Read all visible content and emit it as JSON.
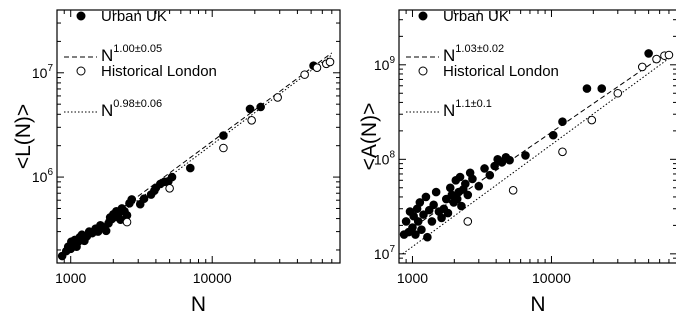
{
  "chart_data": [
    {
      "type": "scatter",
      "xlabel": "N",
      "ylabel": "<L(N)>",
      "xscale": "log",
      "yscale": "log",
      "xlim": [
        800,
        80000
      ],
      "ylim": [
        150000,
        40000000
      ],
      "x_ticks": [
        {
          "value": 1000,
          "label": "1000"
        },
        {
          "value": 10000,
          "label": "10000"
        }
      ],
      "y_ticks": [
        {
          "value": 1000000,
          "base": "10",
          "exp": "6"
        },
        {
          "value": 10000000,
          "base": "10",
          "exp": "7"
        }
      ],
      "legend_position": "top-left",
      "legend": [
        {
          "marker": "filled-circle",
          "label": "Urban UK"
        },
        {
          "line": "dashed",
          "base": "N",
          "exp": "1.00±0.05"
        },
        {
          "marker": "open-circle",
          "label": "Historical London"
        },
        {
          "line": "dotted",
          "base": "N",
          "exp": "0.98±0.06"
        }
      ],
      "fits": [
        {
          "style": "dashed",
          "x": [
            850,
            70000
          ],
          "y": [
            185000,
            15500000
          ]
        },
        {
          "style": "dotted",
          "x": [
            850,
            70000
          ],
          "y": [
            168000,
            14800000
          ]
        }
      ],
      "series": [
        {
          "name": "Urban UK",
          "marker": "filled",
          "points": [
            [
              870,
              175000
            ],
            [
              930,
              195000
            ],
            [
              960,
              215000
            ],
            [
              1000,
              205000
            ],
            [
              1010,
              240000
            ],
            [
              1040,
              225000
            ],
            [
              1070,
              250000
            ],
            [
              1100,
              215000
            ],
            [
              1130,
              240000
            ],
            [
              1160,
              265000
            ],
            [
              1200,
              280000
            ],
            [
              1250,
              245000
            ],
            [
              1300,
              270000
            ],
            [
              1350,
              300000
            ],
            [
              1420,
              290000
            ],
            [
              1500,
              320000
            ],
            [
              1560,
              300000
            ],
            [
              1620,
              345000
            ],
            [
              1700,
              330000
            ],
            [
              1780,
              305000
            ],
            [
              1850,
              360000
            ],
            [
              1900,
              410000
            ],
            [
              1950,
              395000
            ],
            [
              2000,
              440000
            ],
            [
              2050,
              415000
            ],
            [
              2100,
              470000
            ],
            [
              2150,
              430000
            ],
            [
              2200,
              455000
            ],
            [
              2250,
              390000
            ],
            [
              2300,
              500000
            ],
            [
              2400,
              470000
            ],
            [
              2500,
              430000
            ],
            [
              2600,
              560000
            ],
            [
              2700,
              610000
            ],
            [
              3100,
              550000
            ],
            [
              3300,
              620000
            ],
            [
              3700,
              680000
            ],
            [
              3900,
              740000
            ],
            [
              4000,
              790000
            ],
            [
              4300,
              860000
            ],
            [
              4600,
              900000
            ],
            [
              4900,
              910000
            ],
            [
              5200,
              1000000
            ],
            [
              7000,
              1220000
            ],
            [
              12000,
              2500000
            ],
            [
              18500,
              4500000
            ],
            [
              22000,
              4700000
            ],
            [
              52000,
              11700000
            ]
          ]
        },
        {
          "name": "Historical London",
          "marker": "open",
          "points": [
            [
              2500,
              370000
            ],
            [
              5000,
              780000
            ],
            [
              12000,
              1900000
            ],
            [
              19000,
              3500000
            ],
            [
              29000,
              5800000
            ],
            [
              45000,
              9600000
            ],
            [
              55000,
              11200000
            ],
            [
              64000,
              12200000
            ],
            [
              68000,
              12700000
            ]
          ]
        }
      ]
    },
    {
      "type": "scatter",
      "xlabel": "N",
      "ylabel": "<A(N)>",
      "xscale": "log",
      "yscale": "log",
      "xlim": [
        800,
        80000
      ],
      "ylim": [
        8000000,
        3800000000
      ],
      "x_ticks": [
        {
          "value": 1000,
          "label": "1000"
        },
        {
          "value": 10000,
          "label": "10000"
        }
      ],
      "y_ticks": [
        {
          "value": 10000000,
          "base": "10",
          "exp": "7"
        },
        {
          "value": 100000000,
          "base": "10",
          "exp": "8"
        },
        {
          "value": 1000000000,
          "base": "10",
          "exp": "9"
        }
      ],
      "legend_position": "top-left",
      "legend": [
        {
          "marker": "filled-circle",
          "label": "Urban UK"
        },
        {
          "line": "dashed",
          "base": "N",
          "exp": "1.03±0.02"
        },
        {
          "marker": "open-circle",
          "label": "Historical London"
        },
        {
          "line": "dotted",
          "base": "N",
          "exp": "1.1±0.1"
        }
      ],
      "fits": [
        {
          "style": "dashed",
          "x": [
            850,
            70000
          ],
          "y": [
            16000000,
            1380000000
          ]
        },
        {
          "style": "dotted",
          "x": [
            850,
            70000
          ],
          "y": [
            10000000,
            1170000000
          ]
        }
      ],
      "series": [
        {
          "name": "Urban UK",
          "marker": "filled",
          "points": [
            [
              870,
              16000000
            ],
            [
              900,
              22000000
            ],
            [
              940,
              17000000
            ],
            [
              960,
              28000000
            ],
            [
              1000,
              19000000
            ],
            [
              1020,
              25000000
            ],
            [
              1050,
              16000000
            ],
            [
              1080,
              30000000
            ],
            [
              1100,
              22000000
            ],
            [
              1130,
              35000000
            ],
            [
              1160,
              18000000
            ],
            [
              1200,
              26000000
            ],
            [
              1250,
              40000000
            ],
            [
              1280,
              15000000
            ],
            [
              1320,
              29000000
            ],
            [
              1380,
              22000000
            ],
            [
              1420,
              33000000
            ],
            [
              1480,
              45000000
            ],
            [
              1550,
              28000000
            ],
            [
              1620,
              24000000
            ],
            [
              1680,
              30000000
            ],
            [
              1750,
              38000000
            ],
            [
              1800,
              27000000
            ],
            [
              1870,
              50000000
            ],
            [
              1920,
              42000000
            ],
            [
              1980,
              35000000
            ],
            [
              2050,
              60000000
            ],
            [
              2100,
              38000000
            ],
            [
              2150,
              45000000
            ],
            [
              2200,
              65000000
            ],
            [
              2250,
              32000000
            ],
            [
              2320,
              48000000
            ],
            [
              2400,
              55000000
            ],
            [
              2500,
              42000000
            ],
            [
              2600,
              72000000
            ],
            [
              2700,
              62000000
            ],
            [
              3000,
              52000000
            ],
            [
              3300,
              80000000
            ],
            [
              3600,
              68000000
            ],
            [
              3900,
              85000000
            ],
            [
              4100,
              100000000
            ],
            [
              4400,
              93000000
            ],
            [
              4700,
              105000000
            ],
            [
              5000,
              98000000
            ],
            [
              6500,
              110000000
            ],
            [
              10300,
              180000000
            ],
            [
              12000,
              250000000
            ],
            [
              18000,
              560000000
            ],
            [
              23000,
              560000000
            ],
            [
              50000,
              1320000000
            ]
          ]
        },
        {
          "name": "Historical London",
          "marker": "open",
          "points": [
            [
              2500,
              22000000
            ],
            [
              5300,
              47000000
            ],
            [
              12000,
              120000000
            ],
            [
              19500,
              260000000
            ],
            [
              30000,
              500000000
            ],
            [
              45000,
              950000000
            ],
            [
              57000,
              1150000000
            ],
            [
              65000,
              1250000000
            ],
            [
              70000,
              1270000000
            ]
          ]
        }
      ]
    }
  ]
}
